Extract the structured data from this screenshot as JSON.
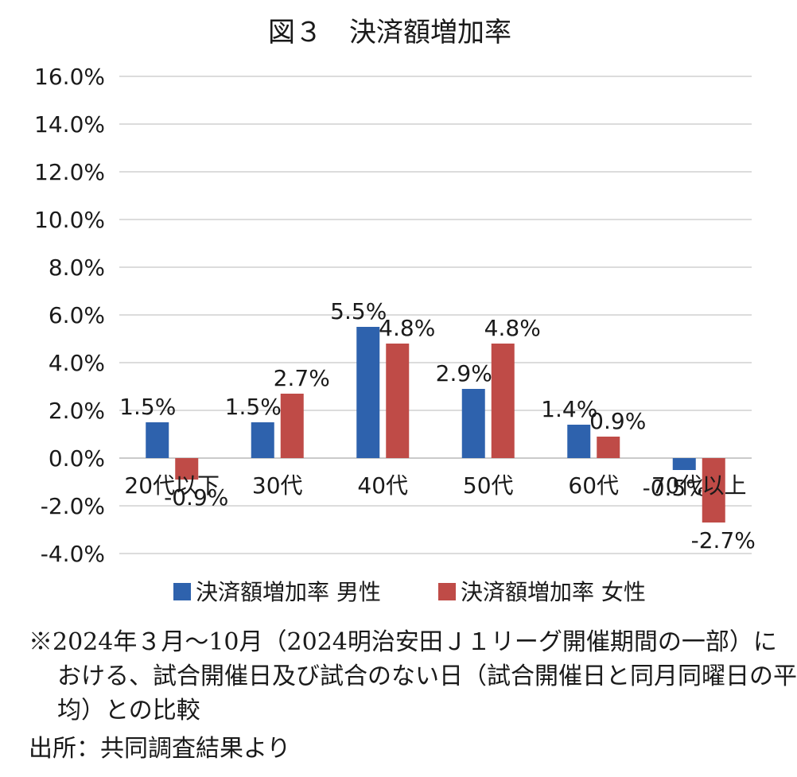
{
  "chart_data": {
    "type": "bar",
    "title": "図３　決済額増加率",
    "categories": [
      "20代以下",
      "30代",
      "40代",
      "50代",
      "60代",
      "70代以上"
    ],
    "series": [
      {
        "name": "決済額増加率 男性",
        "color": "#2e62ad",
        "values": [
          1.5,
          1.5,
          5.5,
          2.9,
          1.4,
          -0.5
        ],
        "labels": [
          "1.5%",
          "1.5%",
          "5.5%",
          "2.9%",
          "1.4%",
          "-0.5%"
        ]
      },
      {
        "name": "決済額増加率 女性",
        "color": "#bf4b47",
        "values": [
          -0.9,
          2.7,
          4.8,
          4.8,
          0.9,
          -2.7
        ],
        "labels": [
          "-0.9%",
          "2.7%",
          "4.8%",
          "4.8%",
          "0.9%",
          "-2.7%"
        ]
      }
    ],
    "y_ticks": [
      "16.0%",
      "14.0%",
      "12.0%",
      "10.0%",
      "8.0%",
      "6.0%",
      "4.0%",
      "2.0%",
      "0.0%",
      "-2.0%",
      "-4.0%"
    ],
    "ylim": [
      -4,
      16
    ],
    "grid": true,
    "legend_position": "bottom"
  },
  "note": "※2024年３月～10月（2024明治安田Ｊ１リーグ開催期間の一部）における、試合開催日及び試合のない日（試合開催日と同月同曜日の平均）との比較",
  "source": "出所：共同調査結果より"
}
